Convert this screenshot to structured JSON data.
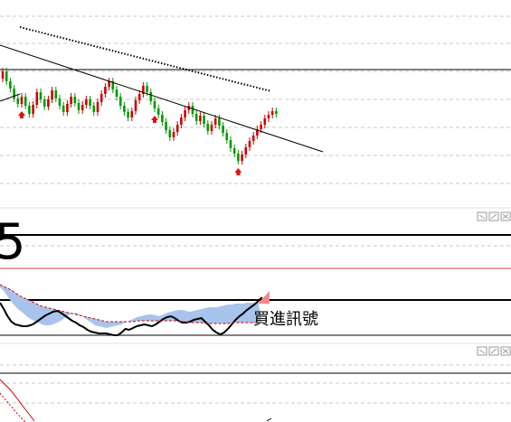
{
  "colors": {
    "up": "#cc0000",
    "down": "#009900",
    "trendline": "#000000",
    "dotted_line": "#000000",
    "grid": "#c8c8c8",
    "hline": "#000000",
    "fill": "#a9c4ec",
    "ma_red": "#cc0000",
    "buy_arrow": "#dd1111",
    "ctrl": "#9a9a9a"
  },
  "icons": {
    "pane1_controls": [
      "minimize-icon",
      "maximize-icon",
      "close-icon"
    ],
    "pane2_controls": [
      "minimize-icon",
      "maximize-icon",
      "close-icon"
    ],
    "buy_signal": "up-arrow-icon"
  },
  "panel1": {
    "big_number": "5"
  },
  "annotation": {
    "text": "買進訊號"
  },
  "chart_data": [
    {
      "type": "candlestick",
      "title": "",
      "grid": true,
      "candles": [
        {
          "open": 87,
          "close": 79
        },
        {
          "open": 79,
          "close": 90
        },
        {
          "open": 90,
          "close": 98
        },
        {
          "open": 98,
          "close": 109
        },
        {
          "open": 109,
          "close": 115
        },
        {
          "open": 115,
          "close": 107
        },
        {
          "open": 107,
          "close": 117
        },
        {
          "open": 117,
          "close": 126
        },
        {
          "open": 126,
          "close": 116
        },
        {
          "open": 116,
          "close": 102
        },
        {
          "open": 102,
          "close": 110
        },
        {
          "open": 110,
          "close": 118
        },
        {
          "open": 118,
          "close": 110
        },
        {
          "open": 110,
          "close": 100
        },
        {
          "open": 100,
          "close": 109
        },
        {
          "open": 109,
          "close": 117
        },
        {
          "open": 117,
          "close": 124
        },
        {
          "open": 124,
          "close": 115
        },
        {
          "open": 115,
          "close": 107
        },
        {
          "open": 107,
          "close": 114
        },
        {
          "open": 114,
          "close": 122
        },
        {
          "open": 122,
          "close": 116
        },
        {
          "open": 116,
          "close": 110
        },
        {
          "open": 110,
          "close": 117
        },
        {
          "open": 117,
          "close": 124
        },
        {
          "open": 124,
          "close": 113
        },
        {
          "open": 113,
          "close": 104
        },
        {
          "open": 104,
          "close": 96
        },
        {
          "open": 96,
          "close": 90
        },
        {
          "open": 90,
          "close": 99
        },
        {
          "open": 99,
          "close": 107
        },
        {
          "open": 107,
          "close": 117
        },
        {
          "open": 117,
          "close": 124
        },
        {
          "open": 124,
          "close": 130
        },
        {
          "open": 130,
          "close": 123
        },
        {
          "open": 123,
          "close": 111
        },
        {
          "open": 111,
          "close": 104
        },
        {
          "open": 104,
          "close": 95
        },
        {
          "open": 95,
          "close": 102
        },
        {
          "open": 102,
          "close": 112
        },
        {
          "open": 112,
          "close": 120
        },
        {
          "open": 120,
          "close": 127
        },
        {
          "open": 127,
          "close": 135
        },
        {
          "open": 135,
          "close": 144
        },
        {
          "open": 144,
          "close": 152
        },
        {
          "open": 152,
          "close": 146
        },
        {
          "open": 146,
          "close": 138
        },
        {
          "open": 138,
          "close": 130
        },
        {
          "open": 130,
          "close": 122
        },
        {
          "open": 122,
          "close": 117
        },
        {
          "open": 117,
          "close": 126
        },
        {
          "open": 126,
          "close": 134
        },
        {
          "open": 134,
          "close": 128
        },
        {
          "open": 128,
          "close": 137
        },
        {
          "open": 137,
          "close": 145
        },
        {
          "open": 145,
          "close": 138
        },
        {
          "open": 138,
          "close": 131
        },
        {
          "open": 131,
          "close": 139
        },
        {
          "open": 139,
          "close": 147
        },
        {
          "open": 147,
          "close": 155
        },
        {
          "open": 155,
          "close": 164
        },
        {
          "open": 164,
          "close": 170
        },
        {
          "open": 170,
          "close": 178
        },
        {
          "open": 178,
          "close": 171
        },
        {
          "open": 171,
          "close": 163
        },
        {
          "open": 163,
          "close": 156
        },
        {
          "open": 156,
          "close": 150
        },
        {
          "open": 150,
          "close": 143
        },
        {
          "open": 143,
          "close": 138
        },
        {
          "open": 138,
          "close": 131
        },
        {
          "open": 131,
          "close": 127
        },
        {
          "open": 127,
          "close": 123
        },
        {
          "open": 123,
          "close": 126
        }
      ],
      "trendline": {
        "start": 50,
        "end": 168
      },
      "dotted_line": {
        "start": 30,
        "end": 101
      },
      "buy_signal_bars": [
        5,
        40,
        62
      ],
      "ylim": [
        20,
        210
      ]
    },
    {
      "type": "area",
      "title": "",
      "grid": true,
      "series": [
        {
          "values": [
            318,
            322,
            328,
            334,
            339,
            343,
            346,
            350,
            353,
            355,
            357,
            359,
            360,
            360,
            359,
            357,
            355,
            352,
            349,
            347,
            346,
            348,
            351,
            354,
            357,
            360,
            361,
            362,
            363,
            362,
            361,
            360,
            359,
            357,
            355,
            353,
            351,
            350,
            349,
            348,
            348,
            349,
            350,
            348,
            346,
            345,
            344,
            343,
            343,
            344,
            345,
            344,
            343,
            342,
            341,
            340,
            340,
            340,
            339,
            338,
            337,
            337,
            336,
            336,
            336,
            335,
            335,
            335,
            335
          ]
        },
        {
          "values": [
            335,
            342,
            350,
            356,
            359,
            360,
            361,
            361,
            360,
            358,
            355,
            352,
            349,
            347,
            345,
            344,
            346,
            349,
            352,
            355,
            357,
            360,
            362,
            365,
            367,
            368,
            369,
            369,
            369,
            370,
            371,
            371,
            368,
            364,
            365,
            363,
            361,
            360,
            359,
            360,
            361,
            359,
            356,
            353,
            351,
            350,
            352,
            355,
            357,
            357,
            356,
            354,
            353,
            352,
            356,
            360,
            365,
            368,
            370,
            368,
            364,
            359,
            354,
            350,
            347,
            343,
            340,
            337,
            333,
            329
          ]
        },
        {
          "values": [
            315,
            317,
            319,
            321,
            324,
            327,
            329,
            331,
            333,
            335,
            337,
            339,
            340,
            341,
            342,
            343,
            344,
            345,
            346,
            347,
            348,
            349,
            350,
            351,
            352,
            353,
            354,
            355,
            356,
            356,
            356,
            356,
            356,
            356,
            356,
            356,
            355,
            355,
            355,
            355,
            355,
            355,
            355,
            355,
            355,
            355,
            355,
            355,
            356,
            356,
            357,
            357,
            357,
            357,
            358,
            358,
            358,
            358,
            358,
            358,
            358,
            357,
            357,
            357,
            357,
            357,
            357,
            357,
            357,
            357
          ]
        }
      ]
    }
  ]
}
